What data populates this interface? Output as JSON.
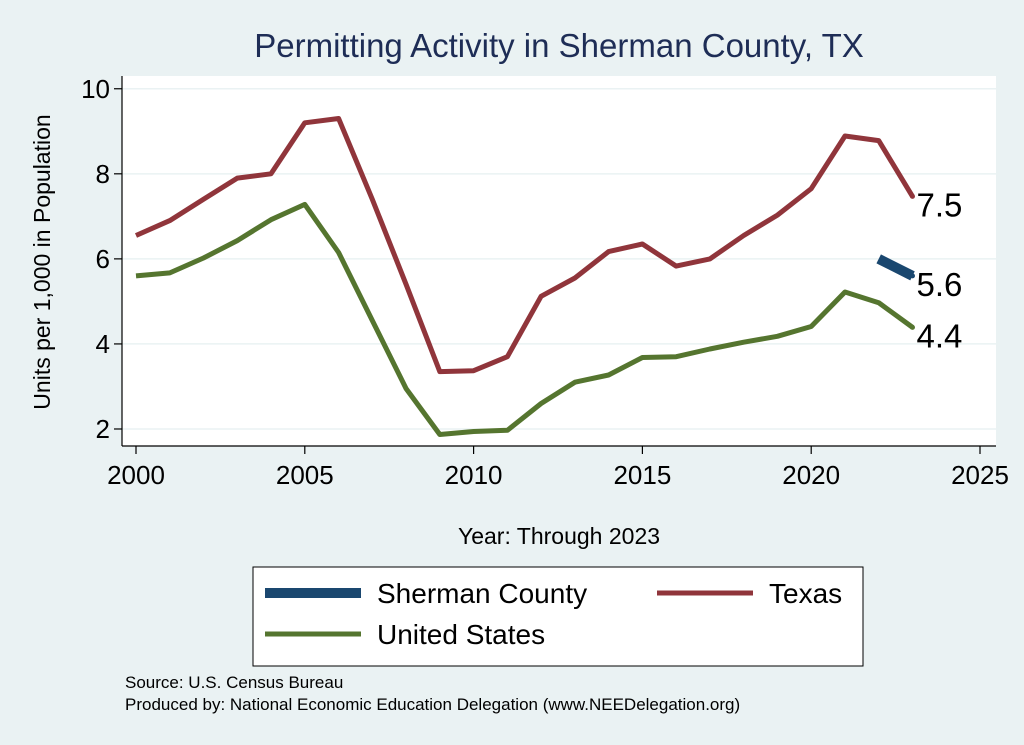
{
  "chart_data": {
    "type": "line",
    "title": "Permitting Activity in Sherman County, TX",
    "xlabel": "Year: Through 2023",
    "ylabel": "Units per 1,000 in Population",
    "xlim": [
      2000,
      2025
    ],
    "ylim": [
      1.6,
      10.3
    ],
    "x_ticks": [
      2000,
      2005,
      2010,
      2015,
      2020,
      2025
    ],
    "y_ticks": [
      2,
      4,
      6,
      8,
      10
    ],
    "grid": "horizontal",
    "legend_position": "bottom",
    "series": [
      {
        "name": "Sherman County",
        "color": "#1a476f",
        "points": [
          [
            2022,
            6.0
          ],
          [
            2023,
            5.6
          ]
        ],
        "end_label": "5.6"
      },
      {
        "name": "Texas",
        "color": "#90353b",
        "points": [
          [
            2000,
            6.55
          ],
          [
            2001,
            6.9
          ],
          [
            2002,
            7.4
          ],
          [
            2003,
            7.9
          ],
          [
            2004,
            8.0
          ],
          [
            2005,
            9.2
          ],
          [
            2006,
            9.3
          ],
          [
            2007,
            7.4
          ],
          [
            2008,
            5.4
          ],
          [
            2009,
            3.35
          ],
          [
            2010,
            3.37
          ],
          [
            2011,
            3.7
          ],
          [
            2012,
            5.12
          ],
          [
            2013,
            5.55
          ],
          [
            2014,
            6.17
          ],
          [
            2015,
            6.35
          ],
          [
            2016,
            5.83
          ],
          [
            2017,
            6.0
          ],
          [
            2018,
            6.55
          ],
          [
            2019,
            7.03
          ],
          [
            2020,
            7.65
          ],
          [
            2021,
            8.89
          ],
          [
            2022,
            8.78
          ],
          [
            2023,
            7.47
          ]
        ],
        "end_label": "7.5"
      },
      {
        "name": "United States",
        "color": "#55752f",
        "points": [
          [
            2000,
            5.6
          ],
          [
            2001,
            5.67
          ],
          [
            2002,
            6.02
          ],
          [
            2003,
            6.43
          ],
          [
            2004,
            6.92
          ],
          [
            2005,
            7.28
          ],
          [
            2006,
            6.15
          ],
          [
            2007,
            4.55
          ],
          [
            2008,
            2.95
          ],
          [
            2009,
            1.87
          ],
          [
            2010,
            1.94
          ],
          [
            2011,
            1.97
          ],
          [
            2012,
            2.6
          ],
          [
            2013,
            3.1
          ],
          [
            2014,
            3.27
          ],
          [
            2015,
            3.68
          ],
          [
            2016,
            3.7
          ],
          [
            2017,
            3.88
          ],
          [
            2018,
            4.04
          ],
          [
            2019,
            4.18
          ],
          [
            2020,
            4.41
          ],
          [
            2021,
            5.22
          ],
          [
            2022,
            4.97
          ],
          [
            2023,
            4.39
          ]
        ],
        "end_label": "4.4"
      }
    ]
  },
  "source_note": "Source: U.S. Census Bureau",
  "producer_note": "Produced by: National Economic Education Delegation (www.NEEDelegation.org)"
}
